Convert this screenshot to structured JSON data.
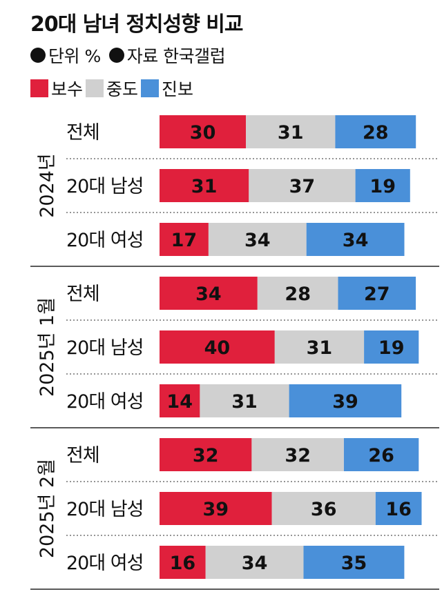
{
  "title": "20대 남녀 정치성향 비교",
  "meta": {
    "unit": "단위 %",
    "source": "자료 한국갤럽"
  },
  "legend": [
    {
      "label": "보수",
      "color": "#e0203c"
    },
    {
      "label": "중도",
      "color": "#d0d0d0"
    },
    {
      "label": "진보",
      "color": "#4a90d9"
    }
  ],
  "chart_data": {
    "type": "bar",
    "stacked": true,
    "orientation": "horizontal",
    "title": "20대 남녀 정치성향 비교",
    "unit": "%",
    "series_names": [
      "보수",
      "중도",
      "진보"
    ],
    "groups": [
      {
        "label": "2024년",
        "rows": [
          {
            "label": "전체",
            "values": [
              30,
              31,
              28
            ]
          },
          {
            "label": "20대 남성",
            "values": [
              31,
              37,
              19
            ]
          },
          {
            "label": "20대 여성",
            "values": [
              17,
              34,
              34
            ]
          }
        ]
      },
      {
        "label": "2025년 1월",
        "rows": [
          {
            "label": "전체",
            "values": [
              34,
              28,
              27
            ]
          },
          {
            "label": "20대 남성",
            "values": [
              40,
              31,
              19
            ]
          },
          {
            "label": "20대 여성",
            "values": [
              14,
              31,
              39
            ]
          }
        ]
      },
      {
        "label": "2025년 2월",
        "rows": [
          {
            "label": "전체",
            "values": [
              32,
              32,
              26
            ]
          },
          {
            "label": "20대 남성",
            "values": [
              39,
              36,
              16
            ]
          },
          {
            "label": "20대 여성",
            "values": [
              16,
              34,
              35
            ]
          }
        ]
      }
    ]
  }
}
